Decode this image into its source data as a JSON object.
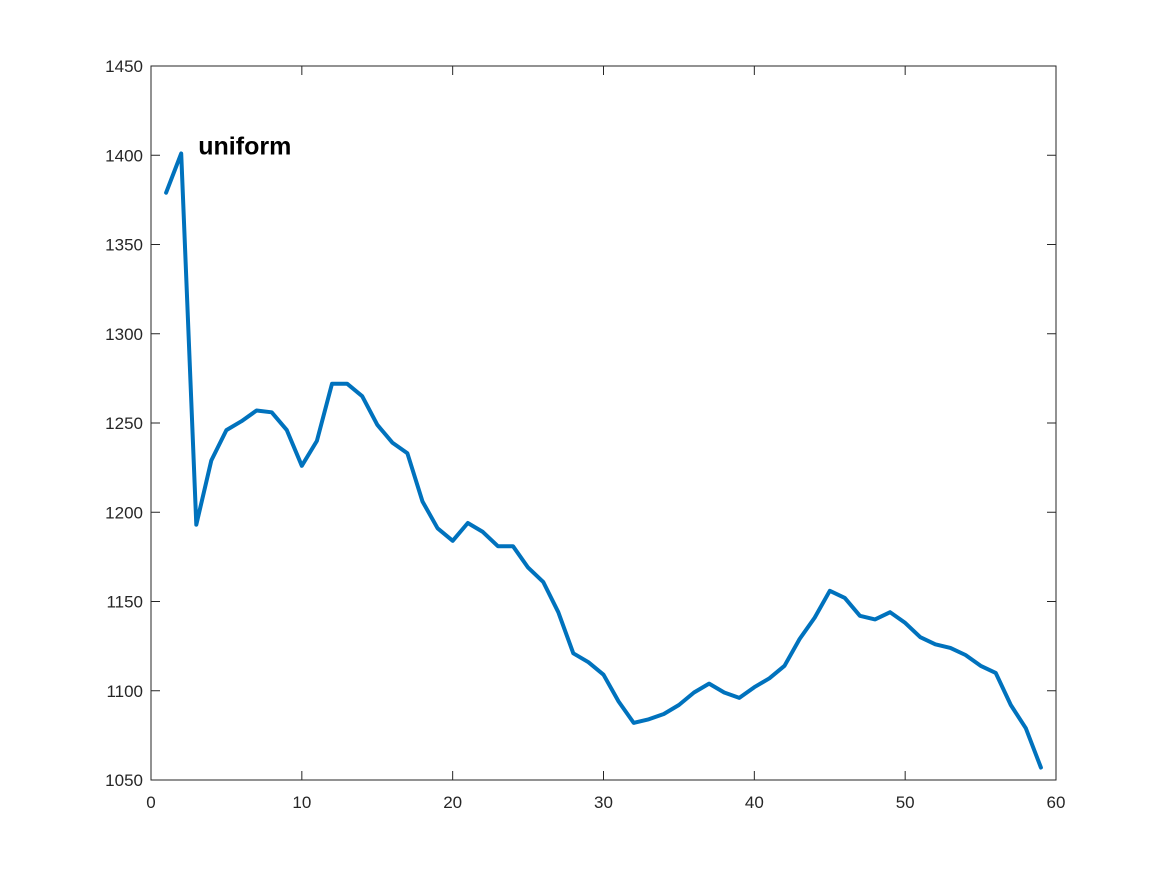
{
  "chart_data": {
    "type": "line",
    "title": "",
    "xlabel": "",
    "ylabel": "",
    "xlim": [
      0,
      60
    ],
    "ylim": [
      1050,
      1450
    ],
    "xticks": [
      "0",
      "10",
      "20",
      "30",
      "40",
      "50",
      "60"
    ],
    "yticks": [
      "1050",
      "1100",
      "1150",
      "1200",
      "1250",
      "1300",
      "1350",
      "1400",
      "1450"
    ],
    "grid": false,
    "annotation": {
      "text": "uniform",
      "x": 3,
      "y": 1405
    },
    "series": [
      {
        "color": "#0072BD",
        "x": [
          1,
          2,
          3,
          4,
          5,
          6,
          7,
          8,
          9,
          10,
          11,
          12,
          13,
          14,
          15,
          16,
          17,
          18,
          19,
          20,
          21,
          22,
          23,
          24,
          25,
          26,
          27,
          28,
          29,
          30,
          31,
          32,
          33,
          34,
          35,
          36,
          37,
          38,
          39,
          40,
          41,
          42,
          43,
          44,
          45,
          46,
          47,
          48,
          49,
          50,
          51,
          52,
          53,
          54,
          55,
          56,
          57,
          58,
          59
        ],
        "y": [
          1379,
          1401,
          1193,
          1229,
          1246,
          1251,
          1257,
          1256,
          1246,
          1226,
          1240,
          1272,
          1272,
          1265,
          1249,
          1239,
          1233,
          1206,
          1191,
          1184,
          1194,
          1189,
          1181,
          1181,
          1169,
          1161,
          1144,
          1121,
          1116,
          1109,
          1094,
          1082,
          1084,
          1087,
          1092,
          1099,
          1104,
          1099,
          1096,
          1102,
          1107,
          1114,
          1129,
          1141,
          1156,
          1152,
          1142,
          1140,
          1144,
          1138,
          1130,
          1126,
          1124,
          1120,
          1114,
          1110,
          1092,
          1079,
          1057
        ]
      }
    ]
  }
}
